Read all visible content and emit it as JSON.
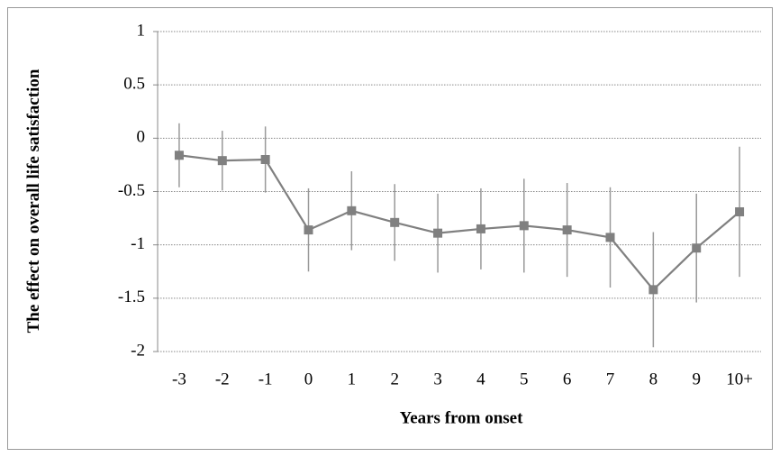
{
  "chart_data": {
    "type": "line",
    "x_label": "Years from onset",
    "y_label": "The effect on overall life satisfaction",
    "categories": [
      "-3",
      "-2",
      "-1",
      "0",
      "1",
      "2",
      "3",
      "4",
      "5",
      "6",
      "7",
      "8",
      "9",
      "10+"
    ],
    "values": [
      -0.16,
      -0.21,
      -0.2,
      -0.86,
      -0.68,
      -0.79,
      -0.89,
      -0.85,
      -0.82,
      -0.86,
      -0.93,
      -1.42,
      -1.03,
      -0.69
    ],
    "errors": [
      0.3,
      0.28,
      0.31,
      0.39,
      0.37,
      0.36,
      0.37,
      0.38,
      0.44,
      0.44,
      0.47,
      0.54,
      0.51,
      0.61
    ],
    "color": "#808080",
    "ylim": [
      -2,
      1
    ],
    "yticks": [
      1,
      0.5,
      0,
      -0.5,
      -1,
      -1.5,
      -2
    ],
    "grid": true
  }
}
